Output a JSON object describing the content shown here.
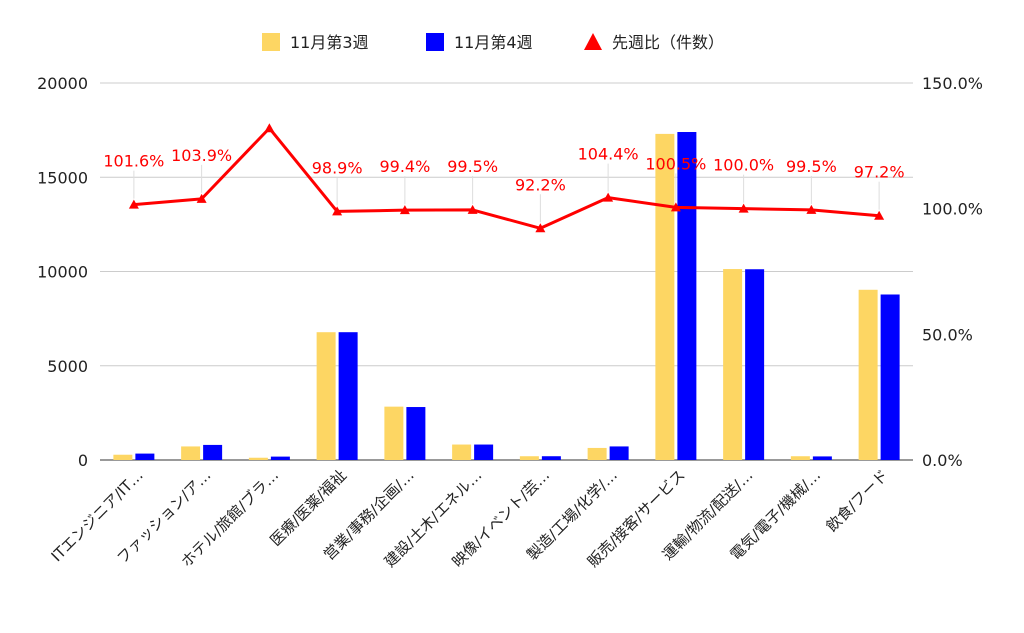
{
  "chart_data": {
    "type": "bar",
    "categories": [
      "ITエンジニア/IT…",
      "ファッション/ア…",
      "ホテル/旅館/ブラ…",
      "医療/医薬/福祉",
      "営業/事務/企画/…",
      "建設/土木/エネル…",
      "映像/イベント/芸…",
      "製造/工場/化学/…",
      "販売/接客/サービス",
      "運輸/物流/配送/…",
      "電気/電子/機械/…",
      "飲食/フード"
    ],
    "series": [
      {
        "name": "11月第3週",
        "color": "#fdd663",
        "values": [
          280,
          720,
          120,
          6780,
          2830,
          820,
          200,
          640,
          17300,
          10130,
          200,
          9030
        ]
      },
      {
        "name": "11月第4週",
        "color": "#0000ff",
        "values": [
          340,
          800,
          180,
          6780,
          2810,
          820,
          200,
          720,
          17400,
          10120,
          190,
          8780
        ]
      }
    ],
    "line": {
      "name": "先週比（件数）",
      "color": "#ff0000",
      "values": [
        101.6,
        103.9,
        132.0,
        98.9,
        99.4,
        99.5,
        92.2,
        104.4,
        100.5,
        100.0,
        99.5,
        97.2
      ],
      "labels": [
        "101.6%",
        "103.9%",
        "",
        "98.9%",
        "99.4%",
        "99.5%",
        "92.2%",
        "104.4%",
        "100.5%",
        "100.0%",
        "99.5%",
        "97.2%"
      ]
    },
    "y_left": {
      "min": 0,
      "max": 20000,
      "ticks": [
        "0",
        "5000",
        "10000",
        "15000",
        "20000"
      ]
    },
    "y_right": {
      "min": 0,
      "max": 150,
      "ticks": [
        "0.0%",
        "50.0%",
        "100.0%",
        "150.0%"
      ]
    },
    "legend_position": "top-center",
    "grid": true
  }
}
